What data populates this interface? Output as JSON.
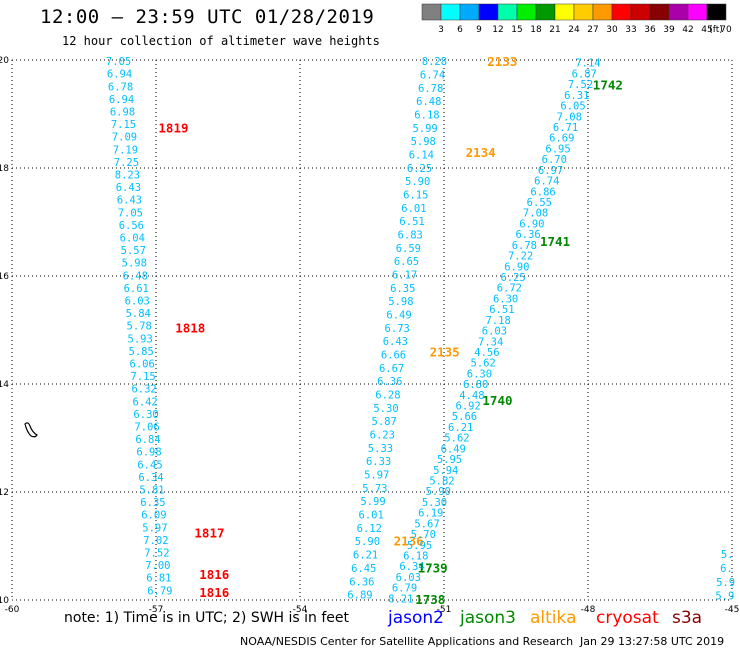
{
  "header": {
    "title": "12:00 – 23:59 UTC 01/28/2019",
    "subtitle": "12 hour collection of altimeter wave heights"
  },
  "legend": {
    "unit": "(ft)",
    "ticks": [
      "3",
      "6",
      "9",
      "12",
      "15",
      "18",
      "21",
      "24",
      "27",
      "30",
      "33",
      "36",
      "39",
      "42",
      "45",
      "70"
    ],
    "colors": [
      "#808080",
      "#00ffff",
      "#00aaff",
      "#0000ff",
      "#00ffaa",
      "#00ee00",
      "#009900",
      "#ffff00",
      "#ffcc00",
      "#ff9900",
      "#ff0000",
      "#cc0000",
      "#880000",
      "#aa00aa",
      "#ff00ff",
      "#000000"
    ]
  },
  "axes": {
    "lon_labels": [
      "-60",
      "-57",
      "-54",
      "-51",
      "-48",
      "-45"
    ],
    "lat_labels": [
      "10",
      "12",
      "14",
      "16",
      "18",
      "20"
    ],
    "lon_range": [
      -60,
      -45
    ],
    "lat_range": [
      10,
      20
    ],
    "grid": "dotted"
  },
  "colors": {
    "jason2": "#0000ff",
    "jason3": "#008800",
    "altika": "#ff9900",
    "cryosat": "#ff0000",
    "s3a": "#880000",
    "wave_value": "#00bfff"
  },
  "tracks": [
    {
      "satellite": "cryosat",
      "pass_labels": [
        {
          "text": "1819",
          "lon": -56.95,
          "lat": 18.75
        },
        {
          "text": "1818",
          "lon": -56.6,
          "lat": 15.05
        },
        {
          "text": "1817",
          "lon": -56.2,
          "lat": 11.25
        },
        {
          "text": "1816",
          "lon": -56.1,
          "lat": 10.48
        },
        {
          "text": "1816",
          "lon": -56.1,
          "lat": 10.15
        }
      ],
      "start": {
        "lon": -57.78,
        "lat": 19.98
      },
      "end": {
        "lon": -56.92,
        "lat": 10.18
      },
      "values": [
        "7.05",
        "6.94",
        "6.78",
        "6.94",
        "6.98",
        "7.15",
        "7.09",
        "7.19",
        "7.25",
        "8.23",
        "6.43",
        "6.43",
        "7.05",
        "6.56",
        "6.04",
        "5.57",
        "5.98",
        "6.48",
        "6.61",
        "6.03",
        "5.84",
        "5.78",
        "5.93",
        "5.85",
        "6.06",
        "7.15",
        "6.32",
        "6.42",
        "6.30",
        "7.06",
        "6.84",
        "6.98",
        "6.45",
        "6.34",
        "5.81",
        "6.35",
        "6.09",
        "5.97",
        "7.02",
        "7.52",
        "7.00",
        "6.81",
        "6.79"
      ]
    },
    {
      "satellite": "altika",
      "pass_labels": [
        {
          "text": "2133",
          "lon": -50.1,
          "lat": 19.98
        },
        {
          "text": "2134",
          "lon": -50.55,
          "lat": 18.3
        },
        {
          "text": "2135",
          "lon": -51.3,
          "lat": 14.6
        },
        {
          "text": "2136",
          "lon": -52.05,
          "lat": 11.1
        }
      ],
      "start": {
        "lon": -51.2,
        "lat": 19.98
      },
      "end": {
        "lon": -52.75,
        "lat": 10.1
      },
      "values": [
        "8.28",
        "6.74",
        "6.78",
        "6.48",
        "6.18",
        "5.99",
        "5.98",
        "6.14",
        "6.25",
        "5.90",
        "6.15",
        "6.01",
        "6.51",
        "6.83",
        "6.59",
        "6.65",
        "6.17",
        "6.35",
        "5.98",
        "6.49",
        "6.73",
        "6.43",
        "6.66",
        "6.67",
        "6.36",
        "6.28",
        "5.30",
        "5.87",
        "6.23",
        "5.33",
        "6.33",
        "5.97",
        "5.73",
        "5.99",
        "6.01",
        "6.12",
        "5.90",
        "6.21",
        "6.45",
        "6.36",
        "6.89"
      ]
    },
    {
      "satellite": "jason3",
      "pass_labels": [
        {
          "text": "1742",
          "lon": -47.9,
          "lat": 19.55
        },
        {
          "text": "1741",
          "lon": -49.0,
          "lat": 16.65
        },
        {
          "text": "1740",
          "lon": -50.2,
          "lat": 13.7
        },
        {
          "text": "1739",
          "lon": -51.55,
          "lat": 10.6
        },
        {
          "text": "1738",
          "lon": -51.6,
          "lat": 10.02
        }
      ],
      "start": {
        "lon": -48.0,
        "lat": 19.95
      },
      "end": {
        "lon": -51.9,
        "lat": 10.03
      },
      "values": [
        "7.14",
        "6.87",
        "7.52",
        "6.31",
        "6.05",
        "7.08",
        "6.71",
        "6.69",
        "6.95",
        "6.70",
        "6.97",
        "6.74",
        "6.86",
        "6.55",
        "7.08",
        "6.90",
        "6.36",
        "6.78",
        "7.22",
        "6.90",
        "6.25",
        "6.72",
        "6.30",
        "6.51",
        "7.18",
        "6.03",
        "7.34",
        "4.56",
        "5.62",
        "6.30",
        "6.80",
        "4.48",
        "6.92",
        "5.66",
        "6.21",
        "5.62",
        "6.49",
        "5.95",
        "5.94",
        "5.82",
        "5.90",
        "5.30",
        "6.19",
        "5.67",
        "5.70",
        "5.95",
        "6.18",
        "6.34",
        "6.03",
        "6.79",
        "8.21"
      ]
    },
    {
      "satellite": "edge",
      "pass_labels": [],
      "start": {
        "lon": -45.1,
        "lat": 10.85
      },
      "end": {
        "lon": -45.15,
        "lat": 10.08
      },
      "values": [
        "5.",
        "6.",
        "5.9",
        "5.9"
      ]
    }
  ],
  "notes": {
    "text": "note: 1) Time is in UTC; 2) SWH is in feet",
    "satellites": [
      "jason2",
      "jason3",
      "altika",
      "cryosat",
      "s3a"
    ]
  },
  "footer": {
    "credit": "NOAA/NESDIS Center for Satellite Applications and Research",
    "timestamp": "Jan 29 13:27:58 UTC 2019"
  }
}
